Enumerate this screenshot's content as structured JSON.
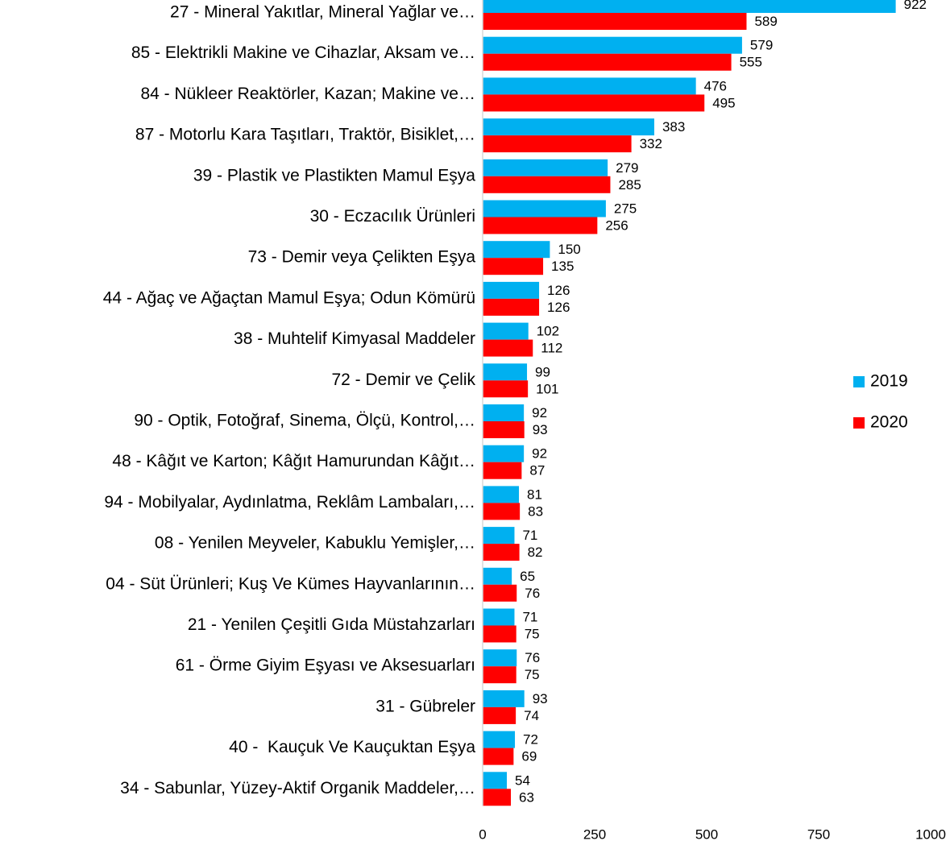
{
  "chart_data": {
    "type": "bar",
    "orientation": "horizontal",
    "categories": [
      "27 - Mineral Yakıtlar, Mineral Yağlar ve…",
      "85 - Elektrikli Makine ve Cihazlar, Aksam ve…",
      "84 - Nükleer Reaktörler, Kazan; Makine ve…",
      "87 - Motorlu Kara Taşıtları, Traktör, Bisiklet,…",
      "39 - Plastik ve Plastikten Mamul Eşya",
      "30 - Eczacılık Ürünleri",
      "73 - Demir veya Çelikten Eşya",
      "44 - Ağaç ve Ağaçtan Mamul Eşya; Odun Kömürü",
      "38 - Muhtelif Kimyasal Maddeler",
      "72 - Demir ve Çelik",
      "90 - Optik, Fotoğraf, Sinema, Ölçü, Kontrol,…",
      "48 - Kâğıt ve Karton; Kâğıt Hamurundan Kâğıt…",
      "94 - Mobilyalar, Aydınlatma, Reklâm Lambaları,…",
      "08 - Yenilen Meyveler, Kabuklu Yemişler,…",
      "04 - Süt Ürünleri; Kuş Ve Kümes Hayvanlarının…",
      "21 - Yenilen Çeşitli Gıda Müstahzarları",
      "61 - Örme Giyim Eşyası ve Aksesuarları",
      "31 - Gübreler",
      "40 -  Kauçuk Ve Kauçuktan Eşya",
      "34 - Sabunlar, Yüzey-Aktif Organik Maddeler,…"
    ],
    "series": [
      {
        "name": "2019",
        "color": "#00b0f0",
        "values": [
          922,
          579,
          476,
          383,
          279,
          275,
          150,
          126,
          102,
          99,
          92,
          92,
          81,
          71,
          65,
          71,
          76,
          93,
          72,
          54
        ]
      },
      {
        "name": "2020",
        "color": "#ff0000",
        "values": [
          589,
          555,
          495,
          332,
          285,
          256,
          135,
          126,
          112,
          101,
          93,
          87,
          83,
          82,
          76,
          75,
          75,
          74,
          69,
          63
        ]
      }
    ],
    "xlim": [
      0,
      1000
    ],
    "xticks": [
      0,
      250,
      500,
      750,
      1000
    ],
    "grid": false,
    "legend": "right"
  }
}
